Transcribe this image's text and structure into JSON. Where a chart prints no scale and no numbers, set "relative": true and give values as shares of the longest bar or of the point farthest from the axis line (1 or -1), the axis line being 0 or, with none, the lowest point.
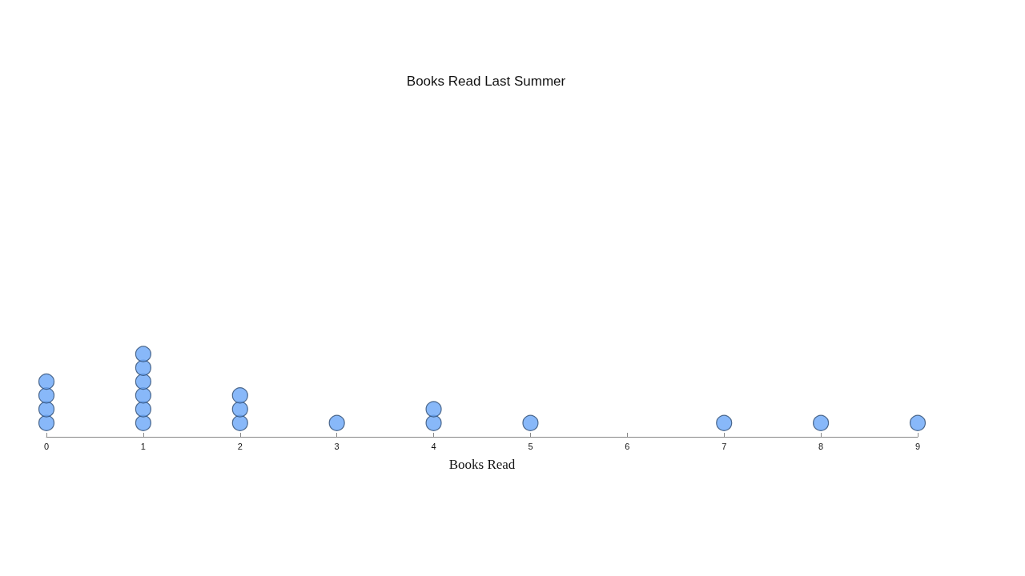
{
  "chart_data": {
    "type": "scatter",
    "title": "Books Read Last Summer",
    "xlabel": "Books Read",
    "relative": true,
    "series": [
      {
        "color": "#6aa6f8",
        "x": [
          0,
          0,
          0,
          0,
          1,
          1,
          1,
          1,
          1,
          1,
          2,
          2,
          2,
          3,
          4,
          4,
          5,
          7,
          8,
          9
        ],
        "values": [
          0.167,
          0.333,
          0.5,
          0.667,
          0.167,
          0.333,
          0.5,
          0.667,
          0.833,
          1,
          0.167,
          0.333,
          0.5,
          0.167,
          0.167,
          0.333,
          0.167,
          0.167,
          0.167,
          0.167
        ]
      }
    ],
    "xlim": [
      0,
      9
    ],
    "xticks": [
      0,
      1,
      2,
      3,
      4,
      5,
      6,
      7,
      8,
      9
    ],
    "tick_labels": "x",
    "grid": false,
    "marker": "circle"
  }
}
